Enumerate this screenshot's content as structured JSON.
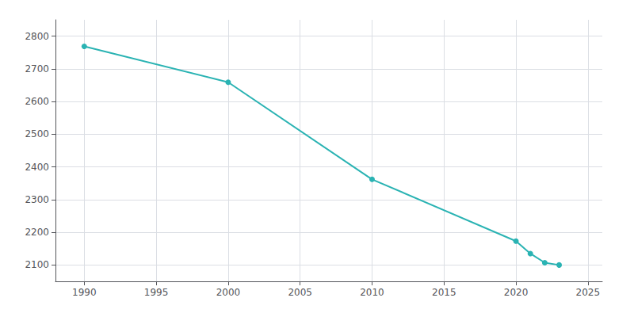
{
  "chart_data": {
    "type": "line",
    "x": [
      1990,
      2000,
      2010,
      2020,
      2021,
      2022,
      2023
    ],
    "values": [
      2769,
      2659,
      2362,
      2173,
      2135,
      2107,
      2100
    ],
    "color": "#2ab3b3",
    "marker": "circle",
    "xlim": [
      1988,
      2026
    ],
    "xticks": [
      1990,
      1995,
      2000,
      2005,
      2010,
      2015,
      2020,
      2025
    ],
    "ylim": [
      2050,
      2850
    ],
    "yticks": [
      2100,
      2200,
      2300,
      2400,
      2500,
      2600,
      2700,
      2800
    ],
    "grid": true
  }
}
